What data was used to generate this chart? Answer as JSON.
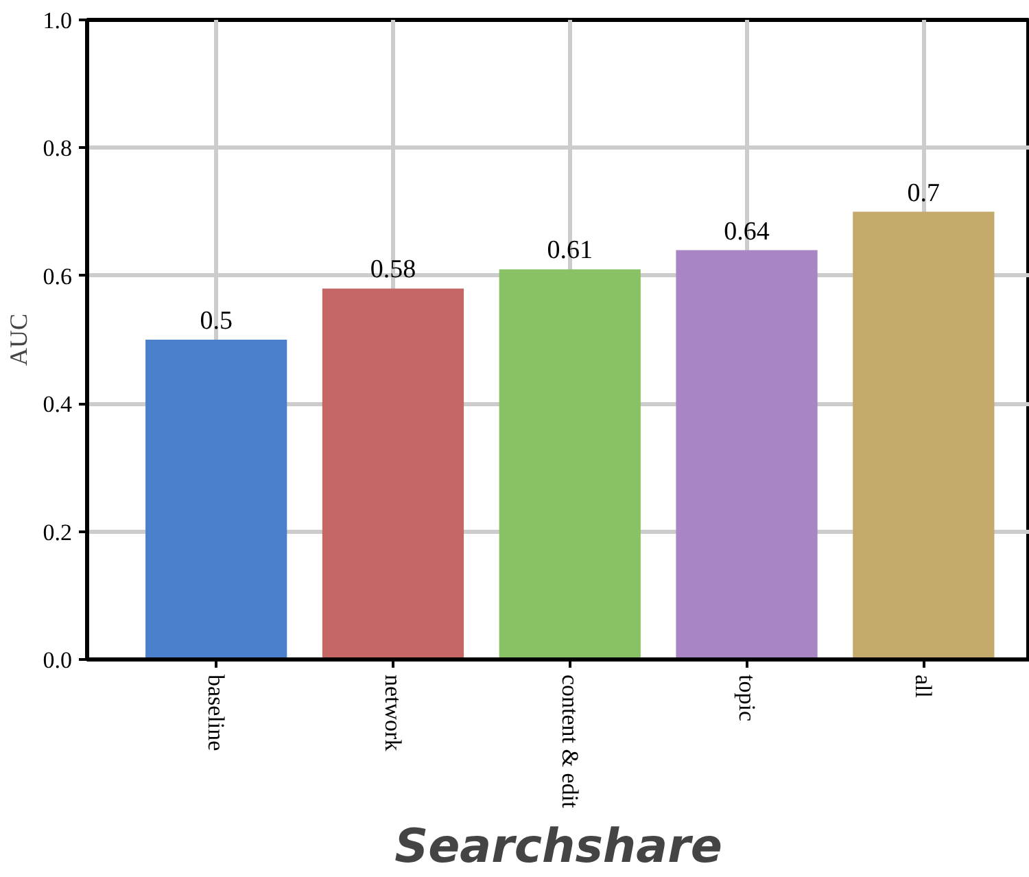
{
  "chart_data": {
    "type": "bar",
    "xlabel": "Searchshare",
    "ylabel": "AUC",
    "categories": [
      "baseline",
      "network",
      "content & edit",
      "topic",
      "all"
    ],
    "values": [
      0.5,
      0.58,
      0.61,
      0.64,
      0.7
    ],
    "colors": [
      "#4a7fcc",
      "#c46664",
      "#88c264",
      "#a886c6",
      "#c4aa6a"
    ],
    "ylim": [
      0,
      1
    ],
    "yticks": [
      {
        "value": 0,
        "label": "0.0"
      },
      {
        "value": 0.2,
        "label": "0.2"
      },
      {
        "value": 0.4,
        "label": "0.4"
      },
      {
        "value": 0.6,
        "label": "0.6"
      },
      {
        "value": 0.8,
        "label": "0.8"
      },
      {
        "value": 1,
        "label": "1.0"
      }
    ],
    "data_labels": true,
    "grid": true
  }
}
